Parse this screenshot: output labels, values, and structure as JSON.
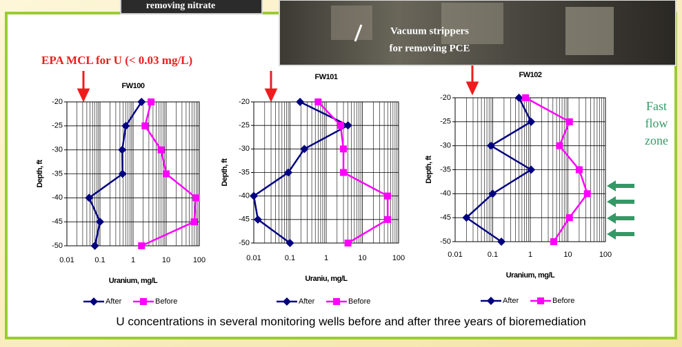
{
  "slide": {
    "photo_caption_left": "removing nitrate",
    "photo_caption_right": [
      "Vacuum strippers",
      "for removing PCE"
    ],
    "mcl_label": "EPA MCL for U (< 0.03 mg/L)",
    "side_note": [
      "Fast",
      "flow",
      "zone"
    ],
    "caption": "U concentrations in several monitoring wells before and after three years of bioremediation"
  },
  "chart_data": [
    {
      "type": "line",
      "title": "FW100",
      "x_label": "Uranium, mg/L",
      "y_label": "Depth, ft",
      "xscale": "log",
      "grid": true,
      "legend": "bottom",
      "y": [
        -20,
        -25,
        -30,
        -35,
        -40,
        -45,
        -50
      ],
      "xlim": [
        0.01,
        100
      ],
      "xticks": [
        0.01,
        0.1,
        1,
        10,
        100
      ],
      "ylim": [
        -50,
        -20
      ],
      "yticks": [
        -20,
        -25,
        -30,
        -35,
        -40,
        -45,
        -50
      ],
      "series": [
        {
          "name": "After",
          "color": "#000080",
          "marker": "diamond",
          "values": [
            1.8,
            0.6,
            0.47,
            0.48,
            0.047,
            0.1,
            0.07
          ]
        },
        {
          "name": "Before",
          "color": "#ff00ff",
          "marker": "square",
          "values": [
            3.5,
            2.3,
            7,
            10,
            80,
            70,
            1.8
          ]
        }
      ]
    },
    {
      "type": "line",
      "title": "FW101",
      "x_label": "Uraniu, mg/L",
      "y_label": "Depth, ft",
      "xscale": "log",
      "grid": true,
      "legend": "bottom",
      "y": [
        -20,
        -25,
        -30,
        -35,
        -40,
        -45,
        -50
      ],
      "xlim": [
        0.01,
        100
      ],
      "xticks": [
        0.01,
        0.1,
        1,
        10,
        100
      ],
      "ylim": [
        -50,
        -20
      ],
      "yticks": [
        -20,
        -25,
        -30,
        -35,
        -40,
        -45,
        -50
      ],
      "series": [
        {
          "name": "After",
          "color": "#000080",
          "marker": "diamond",
          "values": [
            0.19,
            4,
            0.25,
            0.09,
            0.01,
            0.013,
            0.1
          ]
        },
        {
          "name": "Before",
          "color": "#ff00ff",
          "marker": "square",
          "values": [
            0.6,
            2.5,
            3,
            3,
            50,
            50,
            4
          ]
        }
      ]
    },
    {
      "type": "line",
      "title": "FW102",
      "x_label": "Uranium, mg/L",
      "y_label": "Depth, ft",
      "xscale": "log",
      "grid": true,
      "legend": "bottom",
      "y": [
        -20,
        -25,
        -30,
        -35,
        -40,
        -45,
        -50
      ],
      "xlim": [
        0.01,
        100
      ],
      "xticks": [
        0.01,
        0.1,
        1,
        10,
        100
      ],
      "ylim": [
        -50,
        -20
      ],
      "yticks": [
        -20,
        -25,
        -30,
        -35,
        -40,
        -45,
        -50
      ],
      "series": [
        {
          "name": "After",
          "color": "#000080",
          "marker": "diamond",
          "values": [
            0.5,
            1.05,
            0.09,
            1.05,
            0.1,
            0.02,
            0.17
          ]
        },
        {
          "name": "Before",
          "color": "#ff00ff",
          "marker": "square",
          "values": [
            0.75,
            11,
            6,
            20,
            33,
            11,
            4.2
          ]
        }
      ]
    }
  ]
}
